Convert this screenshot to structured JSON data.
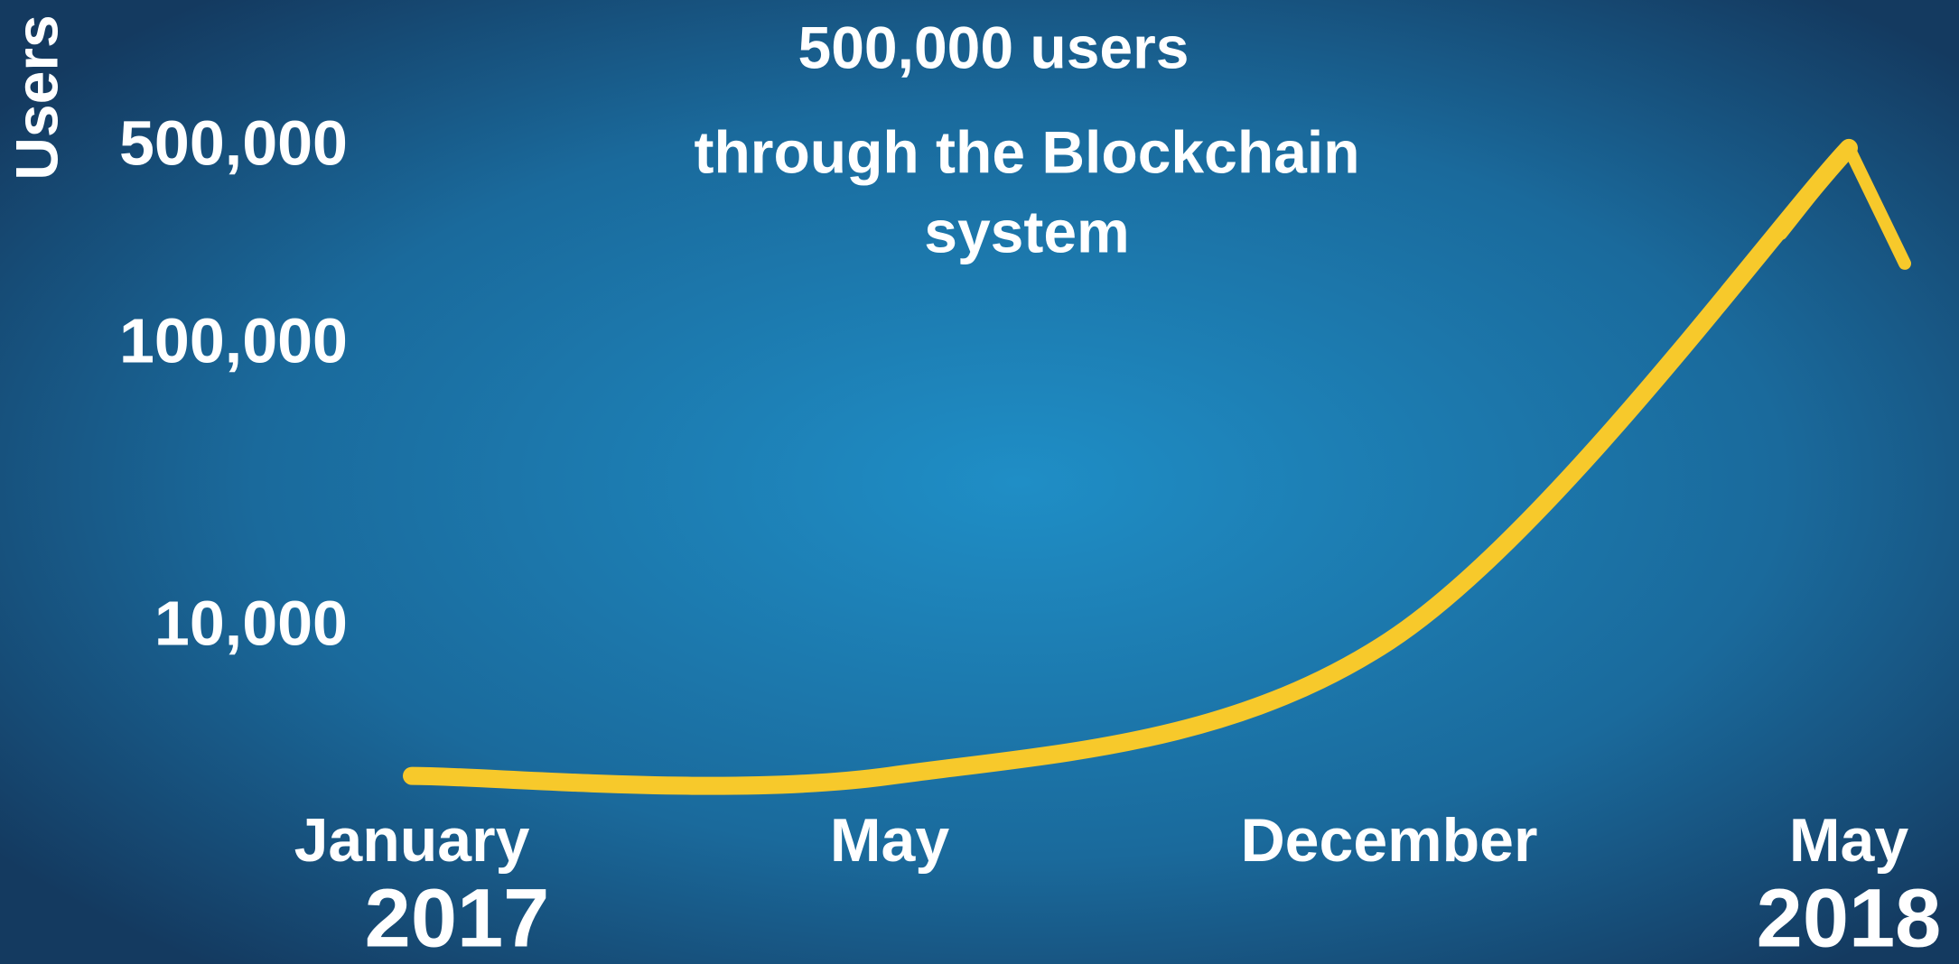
{
  "chart_data": {
    "type": "line",
    "y_label": "Users",
    "annotation": [
      "500,000 users",
      "through the Blockchain",
      "system"
    ],
    "categories": [
      "January",
      "May",
      "December",
      "May"
    ],
    "years": [
      "2017",
      null,
      null,
      "2018"
    ],
    "values": [
      3000,
      3000,
      9000,
      500000
    ],
    "color": "#f7c92b",
    "log_scale": true,
    "ylim": [
      1000,
      800000
    ],
    "yticks": [
      {
        "value": 10000,
        "label": "10,000"
      },
      {
        "value": 100000,
        "label": "100,000"
      },
      {
        "value": 500000,
        "label": "500,000"
      }
    ],
    "grid": false
  }
}
